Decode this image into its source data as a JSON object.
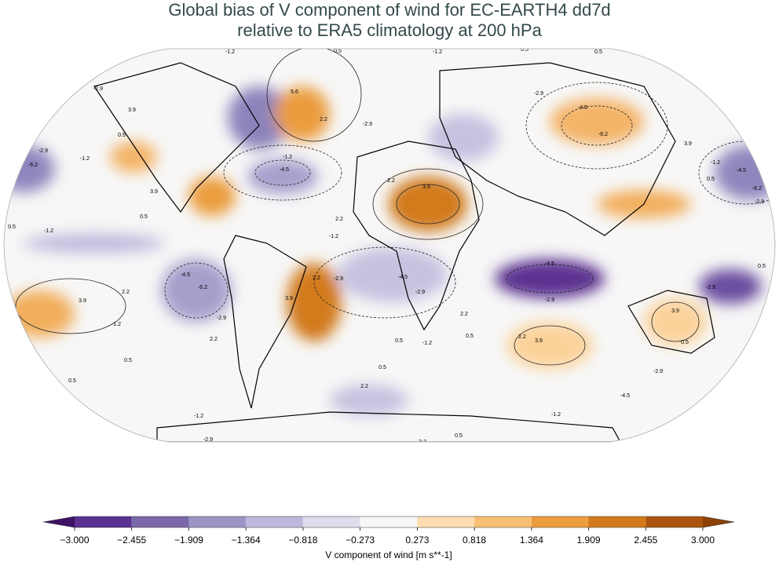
{
  "map": {
    "title_lines": [
      "Global bias of V component of wind for EC-EARTH4 dd7d",
      "relative to ERA5 climatology at 200 hPa"
    ],
    "contour_labels": [
      -1.2,
      0.5,
      -1.2,
      0.5,
      0.5,
      -2.9,
      3.9,
      5.6,
      2.2,
      -2.9,
      -2.9,
      -4.5,
      -6.2,
      0.5,
      -2.9,
      -6.2,
      -1.2,
      -1.2,
      -4.5,
      3.9,
      3.9,
      2.2,
      2.2,
      0.5,
      0.5,
      -1.2,
      -1.2,
      -4.5,
      -2.9,
      -4.5,
      -4.5,
      -2.9,
      3.9,
      3.9,
      2.2,
      -6.2,
      -2.9,
      2.2,
      3.9,
      -1.2,
      2.2,
      3.9,
      2.2,
      0.5,
      0.5,
      0.5,
      0.5,
      -1.2,
      2.2,
      -2.9,
      -4.5,
      -1.2,
      -1.2,
      0.5,
      2.2,
      -2.9,
      0.5,
      0.5,
      2.2,
      0.5,
      -4.5,
      -6.2,
      -2.9,
      3.9,
      -1.2,
      -2.9,
      0.5,
      -2.9
    ]
  },
  "colorbar": {
    "ticks": [
      {
        "value": -3.0,
        "label": "−3.000"
      },
      {
        "value": -2.455,
        "label": "−2.455"
      },
      {
        "value": -1.909,
        "label": "−1.909"
      },
      {
        "value": -1.364,
        "label": "−1.364"
      },
      {
        "value": -0.818,
        "label": "−0.818"
      },
      {
        "value": -0.273,
        "label": "−0.273"
      },
      {
        "value": 0.273,
        "label": "0.273"
      },
      {
        "value": 0.818,
        "label": "0.818"
      },
      {
        "value": 1.364,
        "label": "1.364"
      },
      {
        "value": 1.909,
        "label": "1.909"
      },
      {
        "value": 2.455,
        "label": "2.455"
      },
      {
        "value": 3.0,
        "label": "3.000"
      }
    ],
    "colors": [
      "#5b3291",
      "#7a68aa",
      "#9b95c6",
      "#bcb9dc",
      "#dddcec",
      "#f7f7f7",
      "#fddcb0",
      "#f8be74",
      "#eb9c3d",
      "#d27a1b",
      "#ab550e"
    ],
    "extend_colors": [
      "#3e1264",
      "#8c4106"
    ],
    "label": "V component of wind [m s**-1]"
  }
}
